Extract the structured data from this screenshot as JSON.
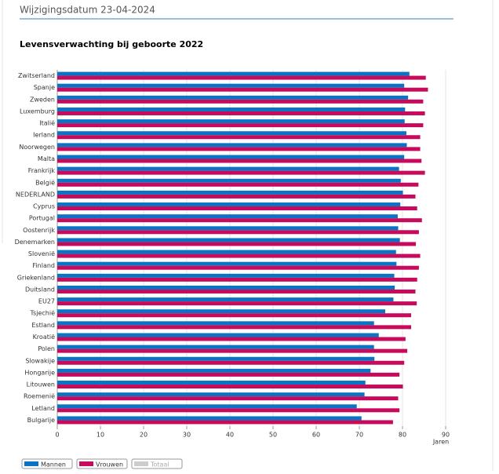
{
  "header": {
    "text": "Wijzigingsdatum 23-04-2024"
  },
  "chart_data": {
    "type": "barh",
    "title": "Levensverwachting bij geboorte 2022",
    "categories": [
      "Zwitserland",
      "Spanje",
      "Zweden",
      "Luxemburg",
      "Italië",
      "Ierland",
      "Noorwegen",
      "Malta",
      "Frankrijk",
      "België",
      "NEDERLAND",
      "Cyprus",
      "Portugal",
      "Oostenrijk",
      "Denemarken",
      "Slovenië",
      "Finland",
      "Griekenland",
      "Duitsland",
      "EU27",
      "Tsjechië",
      "Estland",
      "Kroatië",
      "Polen",
      "Slowakije",
      "Hongarije",
      "Litouwen",
      "Roemenië",
      "Letland",
      "Bulgarije"
    ],
    "series": [
      {
        "name": "Mannen",
        "color": "#0b73c3",
        "values": [
          81.6,
          80.4,
          81.3,
          80.6,
          80.5,
          80.9,
          81.0,
          80.4,
          79.2,
          79.6,
          80.1,
          79.5,
          78.9,
          79.0,
          79.4,
          78.5,
          78.6,
          78.1,
          78.2,
          77.9,
          76.0,
          73.4,
          74.5,
          73.4,
          73.5,
          72.6,
          71.4,
          71.2,
          69.4,
          70.5
        ]
      },
      {
        "name": "Vrouwen",
        "color": "#c70a5c",
        "values": [
          85.4,
          85.9,
          84.8,
          85.2,
          84.8,
          84.1,
          84.1,
          84.4,
          85.2,
          83.7,
          83.0,
          83.4,
          84.5,
          83.8,
          83.1,
          84.1,
          83.8,
          83.4,
          83.0,
          83.3,
          82.0,
          82.0,
          80.7,
          81.1,
          80.4,
          79.3,
          80.1,
          79.0,
          79.3,
          77.8
        ]
      }
    ],
    "inactive_series": [
      {
        "name": "Totaal",
        "color": "#cccccc"
      }
    ],
    "xlabel": "Jaren",
    "xlim": [
      0,
      90
    ],
    "xticks": [
      0,
      10,
      20,
      30,
      40,
      50,
      60,
      70,
      80,
      90
    ],
    "grid": true
  }
}
